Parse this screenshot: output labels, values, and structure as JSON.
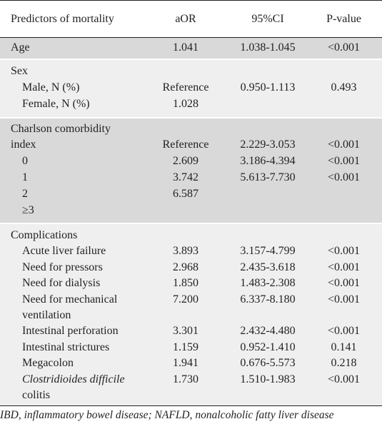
{
  "header": {
    "predictor": "Predictors of mortality",
    "aor": "aOR",
    "ci": "95%CI",
    "p": "P-value"
  },
  "age": {
    "label": "Age",
    "aor": "1.041",
    "ci": "1.038-1.045",
    "p": "<0.001"
  },
  "sex": {
    "label": "Sex",
    "male": {
      "label": "Male, N (%)",
      "aor": "Reference",
      "ci": "0.950-1.113",
      "p": "0.493"
    },
    "female": {
      "label": "Female, N (%)",
      "aor": "1.028"
    }
  },
  "charlson": {
    "label1": "Charlson comorbidity",
    "label2": "index",
    "aor1": "Reference",
    "ci1": "2.229-3.053",
    "p1": "<0.001",
    "r0": {
      "label": "0",
      "aor": "2.609",
      "ci": "3.186-4.394",
      "p": "<0.001"
    },
    "r1": {
      "label": "1",
      "aor": "3.742",
      "ci": "5.613-7.730",
      "p": "<0.001"
    },
    "r2": {
      "label": "2",
      "aor": "6.587"
    },
    "r3": {
      "label": "≥3"
    }
  },
  "complications": {
    "label": "Complications",
    "alf": {
      "label": "Acute liver failure",
      "aor": "3.893",
      "ci": "3.157-4.799",
      "p": "<0.001"
    },
    "pressors": {
      "label": "Need for pressors",
      "aor": "2.968",
      "ci": "2.435-3.618",
      "p": "<0.001"
    },
    "dialysis": {
      "label": "Need for dialysis",
      "aor": "1.850",
      "ci": "1.483-2.308",
      "p": "<0.001"
    },
    "mv": {
      "label1": "Need for mechanical",
      "label2": "ventilation",
      "aor": "7.200",
      "ci": "6.337-8.180",
      "p": "<0.001"
    },
    "perforation": {
      "label": "Intestinal perforation",
      "aor": "3.301",
      "ci": "2.432-4.480",
      "p": "<0.001"
    },
    "strictures": {
      "label": "Intestinal strictures",
      "aor": "1.159",
      "ci": "0.952-1.410",
      "p": "0.141"
    },
    "megacolon": {
      "label": "Megacolon",
      "aor": "1.941",
      "ci": "0.676-5.573",
      "p": "0.218"
    },
    "cdiff": {
      "label1": "Clostridioides difficile",
      "label2": "colitis",
      "aor": "1.730",
      "ci": "1.510-1.983",
      "p": "<0.001"
    }
  },
  "footnote": "IBD, inflammatory bowel disease; NAFLD, nonalcoholic fatty liver disease"
}
